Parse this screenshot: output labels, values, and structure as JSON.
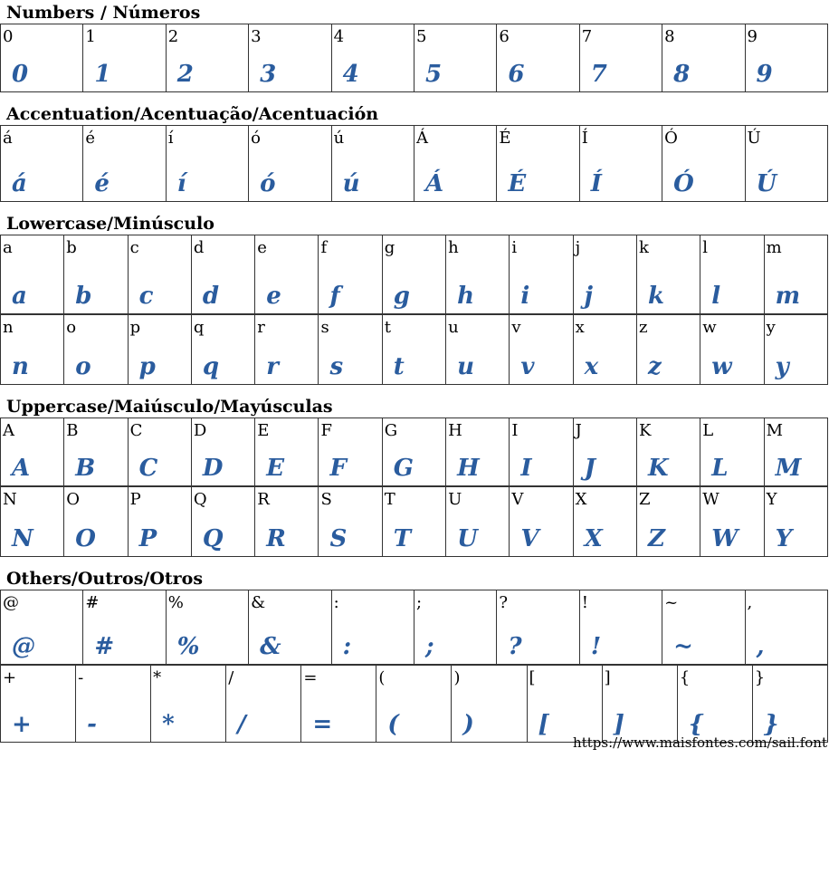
{
  "sections": [
    {
      "title": "Numbers / Números",
      "rows": [
        {
          "h": 74,
          "cells": [
            "0",
            "1",
            "2",
            "3",
            "4",
            "5",
            "6",
            "7",
            "8",
            "9"
          ]
        }
      ]
    },
    {
      "title": "Accentuation/Acentuação/Acentuación",
      "rows": [
        {
          "h": 83,
          "cells": [
            "á",
            "é",
            "í",
            "ó",
            "ú",
            "Á",
            "É",
            "Í",
            "Ó",
            "Ú"
          ]
        }
      ]
    },
    {
      "title": "Lowercase/Minúsculo",
      "rows": [
        {
          "h": 86,
          "cells": [
            "a",
            "b",
            "c",
            "d",
            "e",
            "f",
            "g",
            "h",
            "i",
            "j",
            "k",
            "l",
            "m"
          ]
        },
        {
          "h": 76,
          "cells": [
            "n",
            "o",
            "p",
            "q",
            "r",
            "s",
            "t",
            "u",
            "v",
            "x",
            "z",
            "w",
            "y"
          ]
        }
      ]
    },
    {
      "title": "Uppercase/Maiúsculo/Mayúsculas",
      "rows": [
        {
          "h": 74,
          "cells": [
            "A",
            "B",
            "C",
            "D",
            "E",
            "F",
            "G",
            "H",
            "I",
            "J",
            "K",
            "L",
            "M"
          ]
        },
        {
          "h": 76,
          "cells": [
            "N",
            "O",
            "P",
            "Q",
            "R",
            "S",
            "T",
            "U",
            "V",
            "X",
            "Z",
            "W",
            "Y"
          ]
        }
      ]
    },
    {
      "title": "Others/Outros/Otros",
      "rows": [
        {
          "h": 81,
          "cells": [
            "@",
            "#",
            "%",
            "&",
            ":",
            ";",
            "?",
            "!",
            "~",
            ","
          ]
        },
        {
          "h": 84,
          "cells": [
            "+",
            "-",
            "*",
            "/",
            "=",
            "(",
            ")",
            "[",
            "]",
            "{",
            "}"
          ]
        }
      ]
    }
  ],
  "footer_url": "https://www.maisfontes.com/sail.font",
  "glyph_color": "#2a5c9e"
}
